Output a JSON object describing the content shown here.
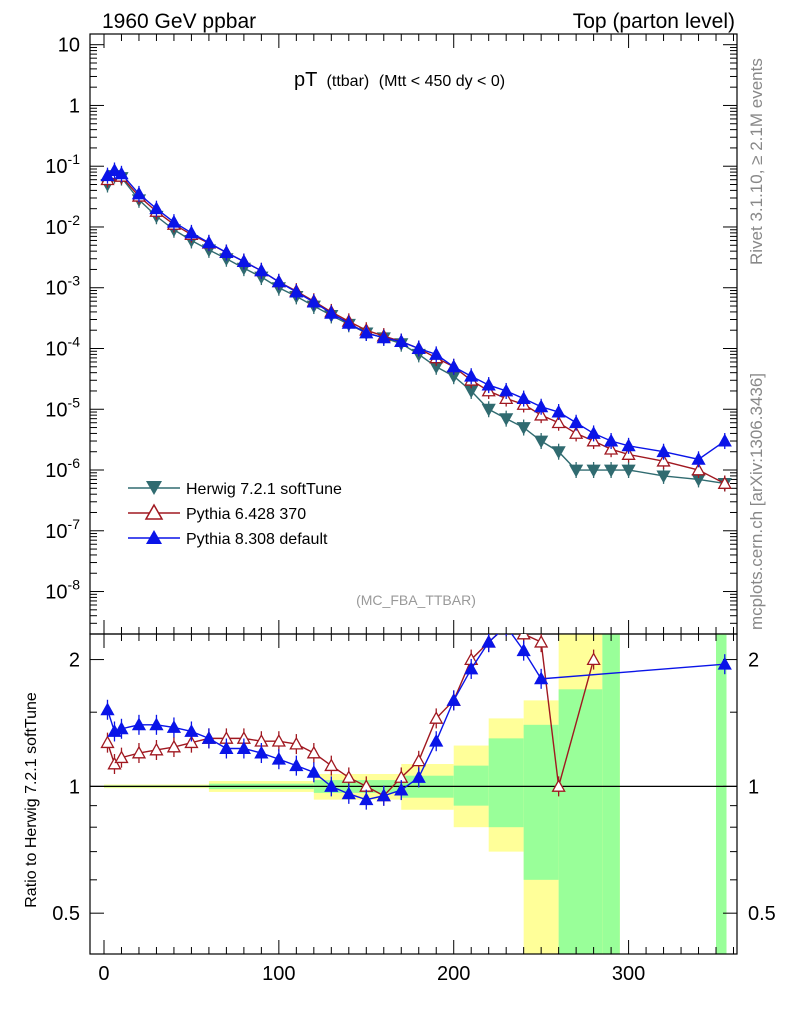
{
  "header": {
    "left": "1960 GeV ppbar",
    "right": "Top (parton level)"
  },
  "side": {
    "rivet": "Rivet 3.1.10, ≥ 2.1M events",
    "mcplots": "mcplots.cern.ch [arXiv:1306.3436]"
  },
  "chart_data": {
    "type": "line",
    "title_main": "pT",
    "title_sub": "(ttbar)",
    "title_cut": "(Mtt < 450 dy < 0)",
    "analysis": "(MC_FBA_TTBAR)",
    "ylabel_ratio": "Ratio to Herwig 7.2.1 softTune",
    "xlim": [
      -8,
      362
    ],
    "ylim_main": [
      2e-09,
      15
    ],
    "ylim_ratio": [
      0.4,
      2.3
    ],
    "log_y_main": true,
    "log_y_ratio": true,
    "x_ticks": [
      0,
      100,
      200,
      300
    ],
    "y_ticks_main": [
      "10",
      "1",
      "10-1",
      "10-2",
      "10-3",
      "10-4",
      "10-5",
      "10-6",
      "10-7",
      "10-8"
    ],
    "y_ticks_ratio": [
      "0.5",
      "1",
      "2"
    ],
    "legend_position": "bottom-left",
    "series": [
      {
        "name": "Herwig 7.2.1 softTune",
        "color": "#306b70",
        "marker": "triangle-down",
        "x": [
          2,
          6,
          10,
          20,
          30,
          40,
          50,
          60,
          70,
          80,
          90,
          100,
          110,
          120,
          130,
          140,
          150,
          160,
          170,
          180,
          190,
          200,
          210,
          220,
          230,
          240,
          250,
          260,
          270,
          280,
          290,
          300,
          320,
          340,
          355
        ],
        "y": [
          0.05,
          0.07,
          0.065,
          0.028,
          0.015,
          0.009,
          0.006,
          0.0042,
          0.003,
          0.0021,
          0.0015,
          0.001,
          0.00072,
          0.0005,
          0.00035,
          0.00025,
          0.00018,
          0.00015,
          0.00012,
          8e-05,
          5e-05,
          3.5e-05,
          2e-05,
          1e-05,
          7e-06,
          5e-06,
          3e-06,
          2e-06,
          1e-06,
          1e-06,
          1e-06,
          1e-06,
          8e-07,
          7e-07,
          6e-07
        ]
      },
      {
        "name": "Pythia 6.428 370",
        "color": "#a01820",
        "marker": "triangle-up-open",
        "x": [
          2,
          6,
          10,
          20,
          30,
          40,
          50,
          60,
          70,
          80,
          90,
          100,
          110,
          120,
          130,
          140,
          150,
          160,
          170,
          180,
          190,
          200,
          210,
          220,
          230,
          240,
          250,
          260,
          270,
          280,
          290,
          300,
          320,
          340,
          355
        ],
        "y": [
          0.06,
          0.075,
          0.068,
          0.032,
          0.018,
          0.011,
          0.0075,
          0.0054,
          0.0038,
          0.0027,
          0.0019,
          0.00125,
          0.00088,
          0.0006,
          0.0004,
          0.00028,
          0.0002,
          0.00016,
          0.00013,
          0.0001,
          7e-05,
          5e-05,
          3e-05,
          2e-05,
          1.5e-05,
          1.2e-05,
          8e-06,
          6e-06,
          4e-06,
          3e-06,
          2.2e-06,
          1.8e-06,
          1.4e-06,
          1e-06,
          6e-07
        ]
      },
      {
        "name": "Pythia 8.308 default",
        "color": "#0a14e8",
        "marker": "triangle-up",
        "x": [
          2,
          6,
          10,
          20,
          30,
          40,
          50,
          60,
          70,
          80,
          90,
          100,
          110,
          120,
          130,
          140,
          150,
          160,
          170,
          180,
          190,
          200,
          210,
          220,
          230,
          240,
          250,
          260,
          270,
          280,
          290,
          300,
          320,
          340,
          355
        ],
        "y": [
          0.07,
          0.085,
          0.075,
          0.035,
          0.02,
          0.012,
          0.008,
          0.0055,
          0.0038,
          0.0027,
          0.0019,
          0.00125,
          0.00085,
          0.00058,
          0.00038,
          0.00026,
          0.00018,
          0.00015,
          0.00013,
          0.0001,
          8e-05,
          5e-05,
          3.5e-05,
          2.5e-05,
          2e-05,
          1.5e-05,
          1.1e-05,
          9e-06,
          6e-06,
          4e-06,
          3e-06,
          2.5e-06,
          2e-06,
          1.5e-06,
          3e-06
        ]
      }
    ],
    "ratio_series": [
      {
        "name": "Pythia 6.428 370",
        "x": [
          2,
          6,
          10,
          20,
          30,
          40,
          50,
          60,
          70,
          80,
          90,
          100,
          110,
          120,
          130,
          140,
          150,
          160,
          170,
          180,
          190,
          200,
          210,
          220,
          230,
          240,
          250,
          260,
          280
        ],
        "y": [
          1.27,
          1.13,
          1.17,
          1.2,
          1.22,
          1.24,
          1.27,
          1.3,
          1.3,
          1.3,
          1.28,
          1.28,
          1.26,
          1.2,
          1.12,
          1.05,
          1.0,
          0.95,
          1.05,
          1.15,
          1.45,
          1.6,
          2.0,
          2.2,
          2.4,
          2.3,
          2.2,
          1.0,
          2.0
        ]
      },
      {
        "name": "Pythia 8.308 default",
        "x": [
          2,
          6,
          10,
          20,
          30,
          40,
          50,
          60,
          70,
          80,
          90,
          100,
          110,
          120,
          130,
          140,
          150,
          160,
          170,
          180,
          190,
          200,
          210,
          220,
          230,
          240,
          250,
          355
        ],
        "y": [
          1.52,
          1.35,
          1.37,
          1.4,
          1.4,
          1.38,
          1.35,
          1.3,
          1.23,
          1.23,
          1.2,
          1.16,
          1.12,
          1.08,
          1.0,
          0.96,
          0.93,
          0.95,
          0.98,
          1.05,
          1.28,
          1.6,
          1.9,
          2.2,
          2.4,
          2.1,
          1.8,
          1.95
        ]
      }
    ],
    "ratio_bands": [
      {
        "x0": 0,
        "x1": 60,
        "yellow": [
          0.99,
          1.01
        ],
        "green": [
          0.995,
          1.005
        ]
      },
      {
        "x0": 60,
        "x1": 120,
        "yellow": [
          0.97,
          1.03
        ],
        "green": [
          0.985,
          1.015
        ]
      },
      {
        "x0": 120,
        "x1": 170,
        "yellow": [
          0.93,
          1.07
        ],
        "green": [
          0.965,
          1.035
        ]
      },
      {
        "x0": 170,
        "x1": 200,
        "yellow": [
          0.88,
          1.13
        ],
        "green": [
          0.94,
          1.06
        ]
      },
      {
        "x0": 200,
        "x1": 220,
        "yellow": [
          0.8,
          1.25
        ],
        "green": [
          0.9,
          1.12
        ]
      },
      {
        "x0": 220,
        "x1": 240,
        "yellow": [
          0.7,
          1.45
        ],
        "green": [
          0.8,
          1.3
        ]
      },
      {
        "x0": 240,
        "x1": 260,
        "yellow": [
          0.4,
          1.6
        ],
        "green": [
          0.6,
          1.4
        ]
      },
      {
        "x0": 260,
        "x1": 285,
        "yellow": [
          0.4,
          2.3
        ],
        "green": [
          0.4,
          1.7
        ]
      },
      {
        "x0": 285,
        "x1": 295,
        "yellow": [
          0.4,
          2.3
        ],
        "green": [
          0.4,
          2.3
        ]
      },
      {
        "x0": 350,
        "x1": 356,
        "yellow": [
          0.4,
          2.3
        ],
        "green": [
          0.4,
          2.3
        ]
      }
    ]
  }
}
